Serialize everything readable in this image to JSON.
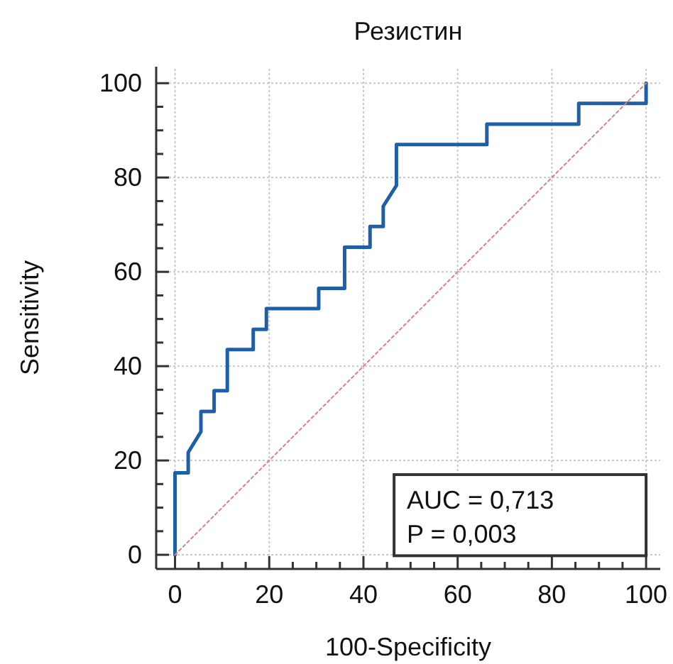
{
  "chart_data": {
    "type": "line",
    "title": "Резистин",
    "xlabel": "100-Specificity",
    "ylabel": "Sensitivity",
    "xlim": [
      -4,
      103
    ],
    "ylim": [
      -3,
      103.5
    ],
    "xticks": [
      0,
      {
        "value": 5,
        "label": null
      },
      {
        "value": 10,
        "label": null
      },
      {
        "value": 15,
        "label": null
      },
      20,
      {
        "value": 25,
        "label": null
      },
      {
        "value": 30,
        "label": null
      },
      {
        "value": 35,
        "label": null
      },
      40,
      {
        "value": 45,
        "label": null
      },
      {
        "value": 50,
        "label": null
      },
      {
        "value": 55,
        "label": null
      },
      60,
      {
        "value": 65,
        "label": null
      },
      {
        "value": 70,
        "label": null
      },
      {
        "value": 75,
        "label": null
      },
      80,
      {
        "value": 85,
        "label": null
      },
      {
        "value": 90,
        "label": null
      },
      {
        "value": 95,
        "label": null
      },
      100
    ],
    "yticks": [
      0,
      {
        "value": 5,
        "label": null
      },
      {
        "value": 10,
        "label": null
      },
      {
        "value": 15,
        "label": null
      },
      20,
      {
        "value": 25,
        "label": null
      },
      {
        "value": 30,
        "label": null
      },
      {
        "value": 35,
        "label": null
      },
      40,
      {
        "value": 45,
        "label": null
      },
      {
        "value": 50,
        "label": null
      },
      {
        "value": 55,
        "label": null
      },
      60,
      {
        "value": 65,
        "label": null
      },
      {
        "value": 70,
        "label": null
      },
      {
        "value": 75,
        "label": null
      },
      80,
      {
        "value": 85,
        "label": null
      },
      {
        "value": 90,
        "label": null
      },
      {
        "value": 95,
        "label": null
      },
      100
    ],
    "grid": true,
    "marker": "none",
    "series": [
      {
        "color": "#1f5fa8",
        "line_style": "solid",
        "x": [
          0,
          0,
          2.8,
          2.8,
          5.5,
          5.5,
          8.3,
          8.3,
          11.1,
          11.1,
          16.6,
          16.6,
          19.4,
          19.4,
          30.5,
          30.5,
          36,
          36,
          41.4,
          41.4,
          44.2,
          44.2,
          47,
          47,
          66.2,
          66.2,
          85.7,
          85.7,
          100,
          100
        ],
        "values": [
          0,
          17.4,
          17.4,
          21.7,
          26.1,
          30.4,
          30.4,
          34.8,
          34.8,
          43.5,
          43.5,
          47.8,
          47.8,
          52.2,
          52.2,
          56.5,
          56.5,
          65.2,
          65.2,
          69.6,
          69.6,
          73.9,
          78.3,
          87,
          87,
          91.3,
          91.3,
          95.7,
          95.7,
          100
        ]
      },
      {
        "color": "#d98080",
        "line_style": "dotted",
        "x": [
          0,
          100
        ],
        "values": [
          0,
          100
        ]
      }
    ],
    "annotations": [
      "AUC = 0,713",
      "P = 0,003"
    ]
  }
}
